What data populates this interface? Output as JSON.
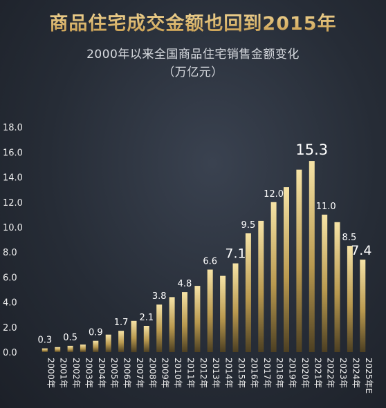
{
  "chart_data": {
    "type": "bar",
    "title": "商品住宅成交金额也回到2015年",
    "subtitle": "2000年以来全国商品住宅销售金额变化",
    "unit": "（万亿元）",
    "categories": [
      "2000年",
      "2001年",
      "2002年",
      "2003年",
      "2004年",
      "2005年",
      "2006年",
      "2007年",
      "2008年",
      "2009年",
      "2010年",
      "2011年",
      "2012年",
      "2013年",
      "2014年",
      "2015年",
      "2016年",
      "2017年",
      "2018年",
      "2019年",
      "2020年",
      "2021年",
      "2022年",
      "2023年",
      "2024年",
      "2025年E"
    ],
    "values": [
      0.3,
      0.4,
      0.5,
      0.6,
      0.9,
      1.4,
      1.7,
      2.5,
      2.1,
      3.8,
      4.4,
      4.8,
      5.3,
      6.6,
      6.1,
      7.1,
      9.5,
      10.5,
      12.0,
      13.2,
      14.6,
      15.3,
      11.0,
      10.4,
      8.5,
      7.4
    ],
    "data_labels": {
      "2000年": "0.3",
      "2002年": "0.5",
      "2004年": "0.9",
      "2006年": "1.7",
      "2008年": "2.1",
      "2009年": "3.8",
      "2011年": "4.8",
      "2013年": "6.6",
      "2015年": "7.1",
      "2016年": "9.5",
      "2018年": "12.0",
      "2021年": "15.3",
      "2022年": "11.0",
      "2024年": "8.5",
      "2025年E": "7.4"
    },
    "ylim": [
      0,
      18
    ],
    "yticks": [
      "0.0",
      "2.0",
      "4.0",
      "6.0",
      "8.0",
      "10.0",
      "12.0",
      "14.0",
      "16.0",
      "18.0"
    ],
    "grid": false,
    "colors": {
      "bar_top": "#f3dc9a",
      "bar_bottom": "#5a4a24",
      "title": "#d9b56a",
      "background": "#2a303a"
    }
  }
}
